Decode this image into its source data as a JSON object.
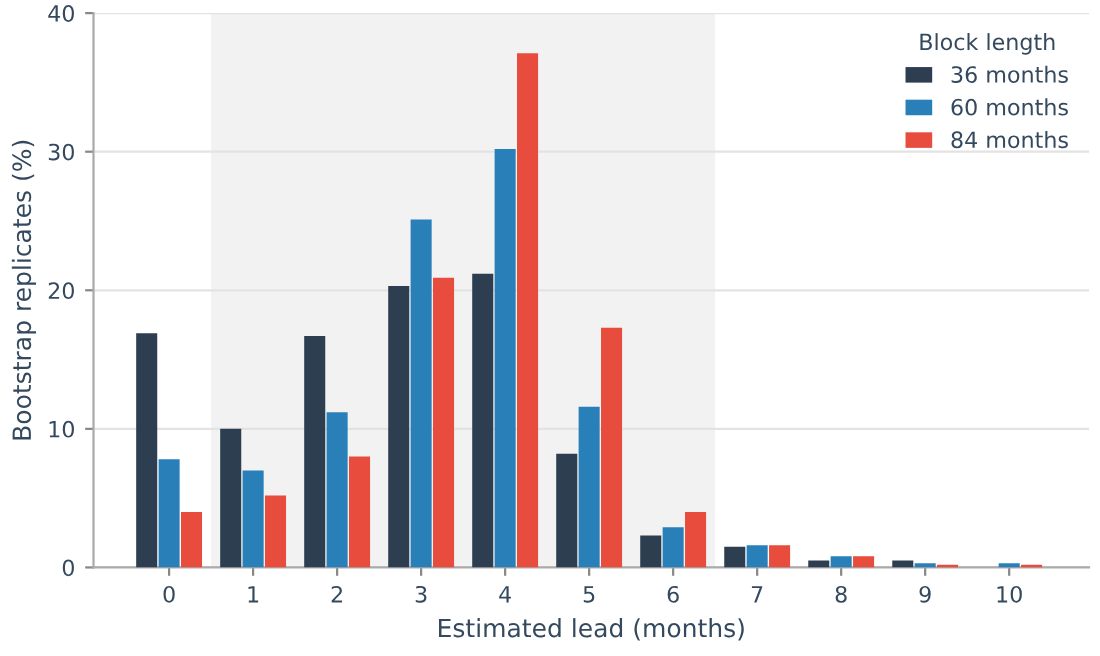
{
  "chart_data": {
    "type": "bar",
    "xlabel": "Estimated lead (months)",
    "ylabel": "Bootstrap replicates (%)",
    "legend_title": "Block length",
    "categories": [
      "0",
      "1",
      "2",
      "3",
      "4",
      "5",
      "6",
      "7",
      "8",
      "9",
      "10"
    ],
    "series": [
      {
        "name": "36 months",
        "color": "#2c3e50",
        "values": [
          16.9,
          10.0,
          16.7,
          20.3,
          21.2,
          8.2,
          2.3,
          1.5,
          0.5,
          0.5,
          null
        ]
      },
      {
        "name": "60 months",
        "color": "#2980b9",
        "values": [
          7.8,
          7.0,
          11.2,
          25.1,
          30.2,
          11.6,
          2.9,
          1.6,
          0.8,
          0.3,
          0.3
        ]
      },
      {
        "name": "84 months",
        "color": "#e74c3c",
        "values": [
          4.0,
          5.2,
          8.0,
          20.9,
          37.1,
          17.3,
          4.0,
          1.6,
          0.8,
          0.2,
          0.2
        ]
      }
    ],
    "ylim": [
      0,
      40
    ],
    "yticks": [
      0,
      10,
      20,
      30,
      40
    ],
    "bands": [
      {
        "axis": "x",
        "from": "1",
        "to": "6",
        "color": "#f2f2f2"
      }
    ],
    "grid": "y",
    "legend": "top right"
  }
}
